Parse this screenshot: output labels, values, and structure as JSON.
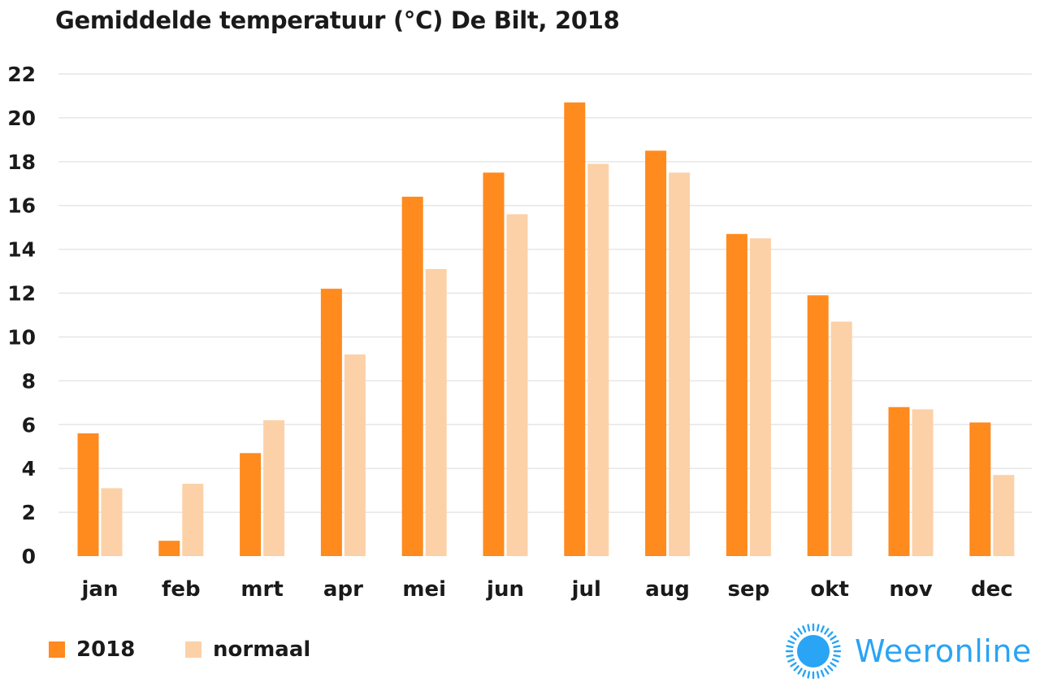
{
  "colors": {
    "series_2018": "#ff8a1e",
    "series_normaal": "#fcd1a8",
    "grid": "#e6e6e6",
    "text": "#1a1a1a",
    "brand": "#2aa4f4"
  },
  "chart_data": {
    "type": "bar",
    "title": "Gemiddelde temperatuur (°C) De Bilt, 2018",
    "xlabel": "",
    "ylabel": "",
    "ylim": [
      0,
      22
    ],
    "yticks": [
      0,
      2,
      4,
      6,
      8,
      10,
      12,
      14,
      16,
      18,
      20,
      22
    ],
    "grid": true,
    "legend_position": "bottom-left",
    "categories": [
      "jan",
      "feb",
      "mrt",
      "apr",
      "mei",
      "jun",
      "jul",
      "aug",
      "sep",
      "okt",
      "nov",
      "dec"
    ],
    "series": [
      {
        "name": "2018",
        "values": [
          5.6,
          0.7,
          4.7,
          12.2,
          16.4,
          17.5,
          20.7,
          18.5,
          14.7,
          11.9,
          6.8,
          6.1
        ]
      },
      {
        "name": "normaal",
        "values": [
          3.1,
          3.3,
          6.2,
          9.2,
          13.1,
          15.6,
          17.9,
          17.5,
          14.5,
          10.7,
          6.7,
          3.7
        ]
      }
    ]
  },
  "legend": {
    "item_2018": "2018",
    "item_normaal": "normaal"
  },
  "brand": {
    "name": "Weeronline",
    "icon": "sun-icon"
  }
}
